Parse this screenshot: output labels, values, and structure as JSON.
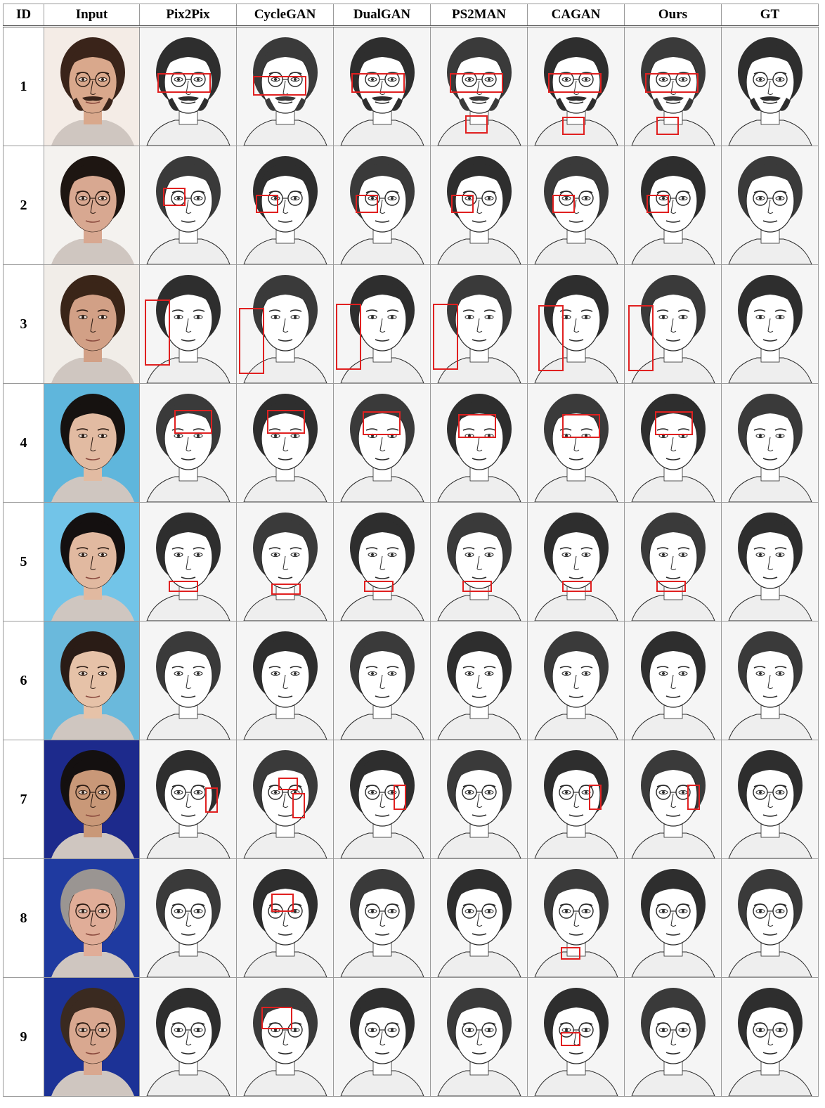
{
  "table": {
    "columns": [
      "ID",
      "Input",
      "Pix2Pix",
      "CycleGAN",
      "DualGAN",
      "PS2MAN",
      "CAGAN",
      "Ours",
      "GT"
    ],
    "rows": [
      {
        "id": "1",
        "input": {
          "bg": "#f4ece6",
          "skin": "#d9a88c",
          "hair": "#3a241a",
          "glasses": true,
          "beard": true
        }
      },
      {
        "id": "2",
        "input": {
          "bg": "#f4f2ef",
          "skin": "#d8a891",
          "hair": "#1e1612",
          "glasses": true,
          "beard": false
        }
      },
      {
        "id": "3",
        "input": {
          "bg": "#f1ede8",
          "skin": "#d2a086",
          "hair": "#3a2518",
          "glasses": false,
          "beard": false
        }
      },
      {
        "id": "4",
        "input": {
          "bg": "#5fb6dc",
          "skin": "#e2bba2",
          "hair": "#161210",
          "glasses": false,
          "beard": false
        }
      },
      {
        "id": "5",
        "input": {
          "bg": "#72c4e8",
          "skin": "#e1b9a0",
          "hair": "#141010",
          "glasses": false,
          "beard": false
        }
      },
      {
        "id": "6",
        "input": {
          "bg": "#6ab9dc",
          "skin": "#e6c2a8",
          "hair": "#2a1c16",
          "glasses": false,
          "beard": false
        }
      },
      {
        "id": "7",
        "input": {
          "bg": "#1d2a8c",
          "skin": "#c99878",
          "hair": "#141010",
          "glasses": true,
          "beard": false
        }
      },
      {
        "id": "8",
        "input": {
          "bg": "#1f3aa0",
          "skin": "#e0ad98",
          "hair": "#9a9592",
          "glasses": true,
          "beard": false
        }
      },
      {
        "id": "9",
        "input": {
          "bg": "#1c3296",
          "skin": "#d9a890",
          "hair": "#3a2a20",
          "glasses": true,
          "beard": false
        }
      }
    ]
  },
  "colors": {
    "highlight": "#e02020",
    "grid": "#9a9a9a",
    "sketch_bg": "#f5f5f5",
    "sketch_ink": "#2a2a2a"
  }
}
